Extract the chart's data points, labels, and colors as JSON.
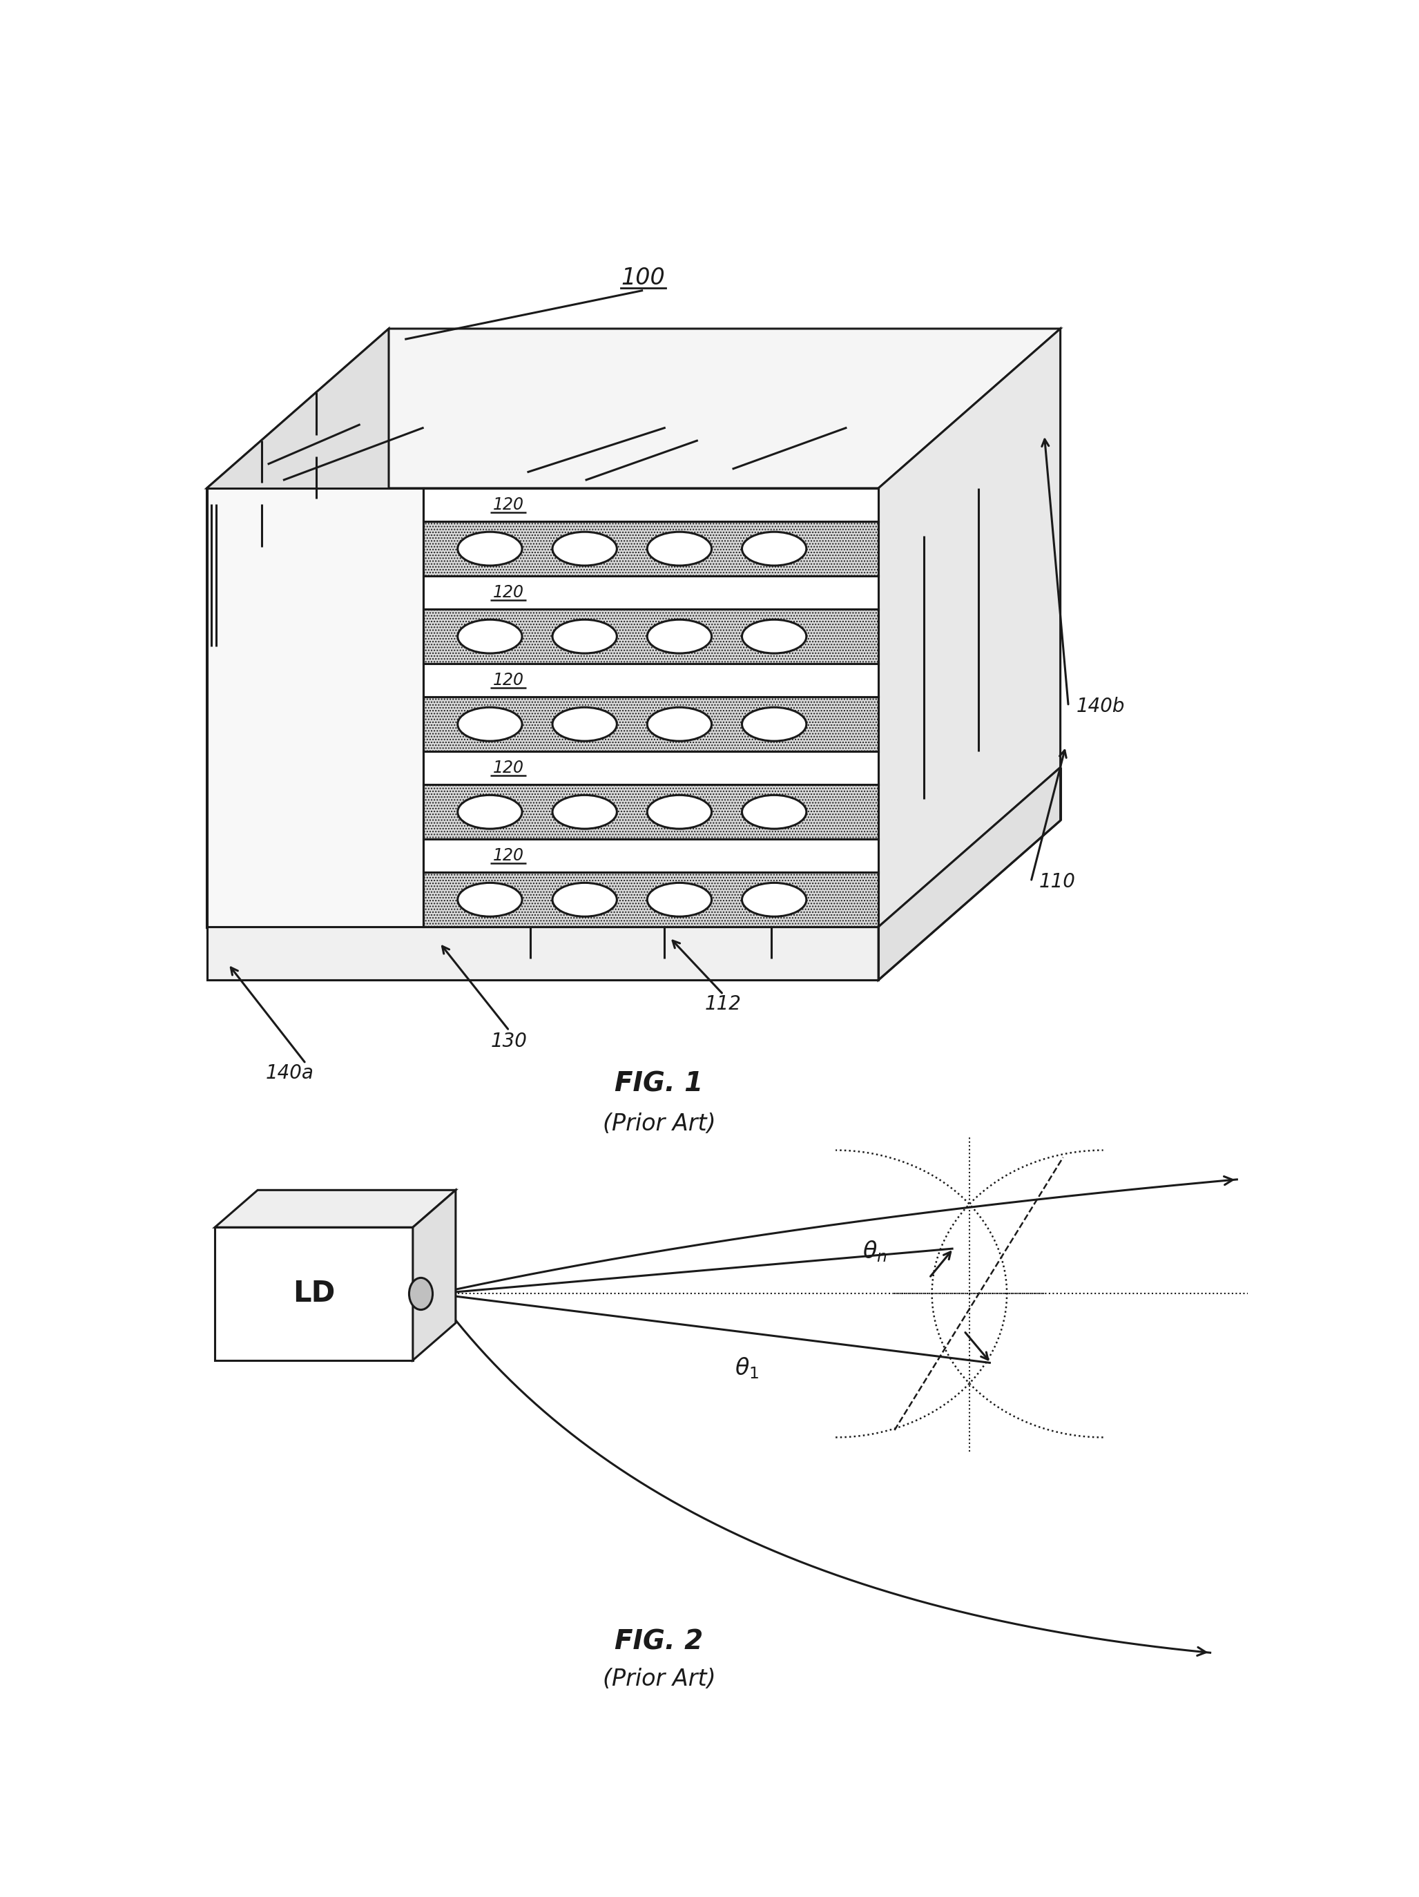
{
  "fig_width": 20.55,
  "fig_height": 27.47,
  "bg_color": "#ffffff",
  "line_color": "#1a1a1a",
  "fig1_title": "FIG. 1",
  "fig1_subtitle": "(Prior Art)",
  "fig2_title": "FIG. 2",
  "fig2_subtitle": "(Prior Art)",
  "label_100": "100",
  "label_110": "110",
  "label_112": "112",
  "label_120": "120",
  "label_130": "130",
  "label_140a": "140a",
  "label_140b": "140b",
  "label_LD": "LD",
  "hatch_color": "#888888",
  "stipple_color": "#cccccc",
  "face_white": "#ffffff",
  "face_light": "#f0f0f0",
  "face_mid": "#e0e0e0",
  "face_dark": "#cccccc"
}
